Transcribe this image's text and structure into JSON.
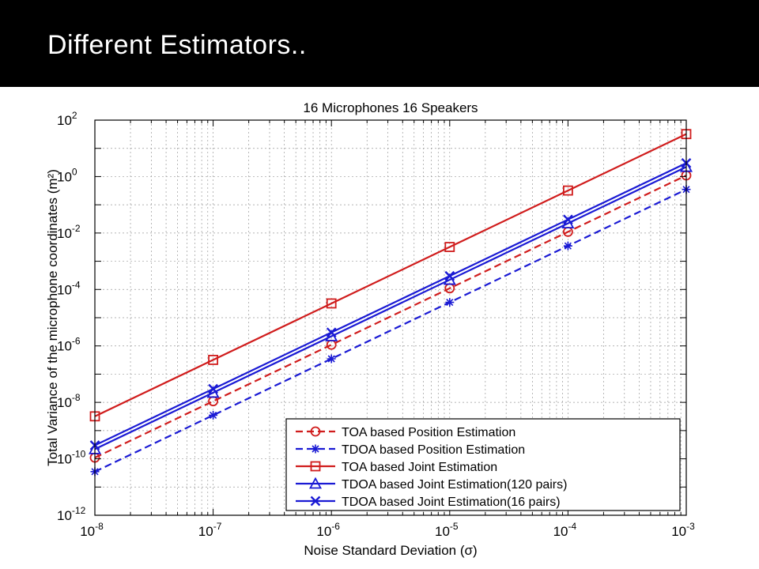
{
  "slide": {
    "title": "Different Estimators.."
  },
  "colors": {
    "red": "#d01c1c",
    "blue": "#1a1ad4",
    "grid": "#9a9a9a",
    "header": "#000000"
  },
  "chart_data": {
    "type": "line",
    "title": "16 Microphones 16 Speakers",
    "xlabel": "Noise Standard Deviation (σ)",
    "ylabel": "Total Variance of the microphone coordinates (m²)",
    "xscale": "log",
    "yscale": "log",
    "xlim": [
      1e-08,
      0.001
    ],
    "ylim": [
      1e-12,
      100.0
    ],
    "grid": true,
    "legend_position": "bottom-right",
    "x_ticks": [
      {
        "value": 1e-08,
        "base": "10",
        "exp": "-8"
      },
      {
        "value": 1e-07,
        "base": "10",
        "exp": "-7"
      },
      {
        "value": 1e-06,
        "base": "10",
        "exp": "-6"
      },
      {
        "value": 1e-05,
        "base": "10",
        "exp": "-5"
      },
      {
        "value": 0.0001,
        "base": "10",
        "exp": "-4"
      },
      {
        "value": 0.001,
        "base": "10",
        "exp": "-3"
      }
    ],
    "y_ticks": [
      {
        "value": 1e-12,
        "base": "10",
        "exp": "-12"
      },
      {
        "value": 1e-10,
        "base": "10",
        "exp": "-10"
      },
      {
        "value": 1e-08,
        "base": "10",
        "exp": "-8"
      },
      {
        "value": 1e-06,
        "base": "10",
        "exp": "-6"
      },
      {
        "value": 0.0001,
        "base": "10",
        "exp": "-4"
      },
      {
        "value": 0.01,
        "base": "10",
        "exp": "-2"
      },
      {
        "value": 1,
        "base": "10",
        "exp": "0"
      },
      {
        "value": 100,
        "base": "10",
        "exp": "2"
      }
    ],
    "x": [
      1e-08,
      1e-07,
      1e-06,
      1e-05,
      0.0001,
      0.001
    ],
    "series": [
      {
        "name": "TOA based Position Estimation",
        "color": "#d01c1c",
        "dash": "dashed",
        "marker": "circle",
        "values": [
          1.1e-10,
          1.1e-08,
          1.1e-06,
          0.00011,
          0.011,
          1.1
        ]
      },
      {
        "name": "TDOA based Position Estimation",
        "color": "#1a1ad4",
        "dash": "dashed",
        "marker": "star",
        "values": [
          3.5e-11,
          3.5e-09,
          3.5e-07,
          3.5e-05,
          0.0035,
          0.35
        ]
      },
      {
        "name": "TOA based Joint Estimation",
        "color": "#d01c1c",
        "dash": "solid",
        "marker": "square",
        "values": [
          3.2e-09,
          3.2e-07,
          3.2e-05,
          0.0032,
          0.32,
          32
        ]
      },
      {
        "name": "TDOA based Joint Estimation(120 pairs)",
        "color": "#1a1ad4",
        "dash": "solid",
        "marker": "triangle",
        "values": [
          2.2e-10,
          2.2e-08,
          2.2e-06,
          0.00022,
          0.022,
          2.2
        ]
      },
      {
        "name": "TDOA based Joint Estimation(16 pairs)",
        "color": "#1a1ad4",
        "dash": "solid",
        "marker": "x",
        "values": [
          3e-10,
          3e-08,
          3e-06,
          0.0003,
          0.03,
          3.0
        ]
      }
    ]
  }
}
